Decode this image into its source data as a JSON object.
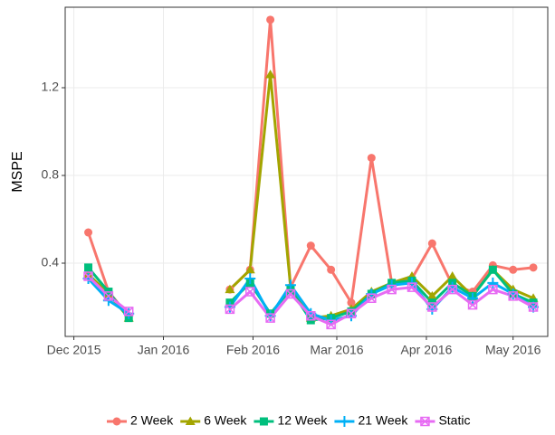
{
  "chart_data": {
    "type": "line",
    "y_label": "MSPE",
    "x": [
      "2015-12-06",
      "2015-12-13",
      "2015-12-20",
      "2015-12-27",
      "2016-01-03",
      "2016-01-10",
      "2016-01-17",
      "2016-01-24",
      "2016-01-31",
      "2016-02-07",
      "2016-02-14",
      "2016-02-21",
      "2016-02-28",
      "2016-03-06",
      "2016-03-13",
      "2016-03-20",
      "2016-03-27",
      "2016-04-03",
      "2016-04-10",
      "2016-04-17",
      "2016-04-24",
      "2016-05-01",
      "2016-05-08"
    ],
    "series": [
      {
        "name": "2 Week",
        "color": "#F8766D",
        "marker": "circle",
        "values": [
          0.54,
          0.27,
          0.16,
          null,
          null,
          null,
          null,
          0.28,
          0.37,
          1.51,
          0.29,
          0.48,
          0.37,
          0.22,
          0.88,
          0.31,
          0.33,
          0.49,
          0.3,
          0.27,
          0.39,
          0.37,
          0.38
        ]
      },
      {
        "name": "6 Week",
        "color": "#A3A500",
        "marker": "triangle",
        "values": [
          0.35,
          0.26,
          0.15,
          null,
          null,
          null,
          null,
          0.28,
          0.37,
          1.26,
          0.29,
          0.15,
          0.16,
          0.19,
          0.27,
          0.31,
          0.34,
          0.25,
          0.34,
          0.25,
          0.37,
          0.28,
          0.24
        ]
      },
      {
        "name": "12 Week",
        "color": "#00BF7D",
        "marker": "square",
        "values": [
          0.38,
          0.27,
          0.15,
          null,
          null,
          null,
          null,
          0.22,
          0.31,
          0.17,
          0.28,
          0.14,
          0.15,
          0.18,
          0.26,
          0.31,
          0.32,
          0.22,
          0.31,
          0.25,
          0.37,
          0.26,
          0.22
        ]
      },
      {
        "name": "21 Week",
        "color": "#00B0F6",
        "marker": "plus",
        "values": [
          0.33,
          0.23,
          0.17,
          null,
          null,
          null,
          null,
          0.2,
          0.33,
          0.16,
          0.3,
          0.17,
          0.14,
          0.16,
          0.26,
          0.3,
          0.31,
          0.19,
          0.29,
          0.24,
          0.31,
          0.26,
          0.2
        ]
      },
      {
        "name": "Static",
        "color": "#E76BF3",
        "marker": "boxcross",
        "values": [
          0.34,
          0.25,
          0.18,
          null,
          null,
          null,
          null,
          0.19,
          0.27,
          0.15,
          0.26,
          0.16,
          0.12,
          0.17,
          0.24,
          0.28,
          0.29,
          0.2,
          0.28,
          0.21,
          0.28,
          0.25,
          0.2
        ]
      }
    ],
    "xlim": [
      "2015-11-28",
      "2016-05-13"
    ],
    "xticks": [
      {
        "value": "2015-12-01",
        "label": "Dec 2015"
      },
      {
        "value": "2016-01-01",
        "label": "Jan 2016"
      },
      {
        "value": "2016-02-01",
        "label": "Feb 2016"
      },
      {
        "value": "2016-03-01",
        "label": "Mar 2016"
      },
      {
        "value": "2016-04-01",
        "label": "Apr 2016"
      },
      {
        "value": "2016-05-01",
        "label": "May 2016"
      }
    ],
    "ylim": [
      0.066,
      1.567
    ],
    "yticks": [
      0.4,
      0.8,
      1.2
    ],
    "grid": true,
    "legend": "bottom"
  }
}
